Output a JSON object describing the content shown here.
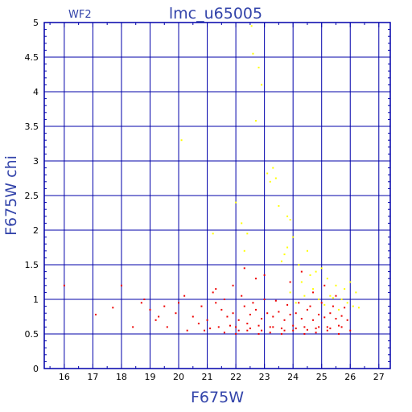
{
  "chart_data": {
    "type": "scatter",
    "title": "lmc_u65005",
    "subtitle": "WF2",
    "xlabel": "F675W",
    "ylabel": "F675W chi",
    "xlim": [
      15.3,
      27.4
    ],
    "ylim": [
      0,
      5
    ],
    "x_ticks": [
      16,
      17,
      18,
      19,
      20,
      21,
      22,
      23,
      24,
      25,
      26,
      27
    ],
    "y_ticks": [
      0,
      0.5,
      1,
      1.5,
      2,
      2.5,
      3,
      3.5,
      4,
      4.5,
      5
    ],
    "y_tick_labels": [
      "0",
      "0.5",
      "1",
      "1.5",
      "2",
      "2.5",
      "3",
      "3.5",
      "4",
      "4.5",
      "5"
    ],
    "grid": true,
    "colors": {
      "frame": "#0000aa",
      "text": "#3344aa",
      "series_red": "#ee0000",
      "series_yellow": "#ffff00"
    },
    "series": [
      {
        "color": "#ffff00",
        "x": [
          22.6,
          22.8,
          22.9,
          22.7,
          22.55,
          23.3,
          23.1,
          23.2,
          23.4,
          23.5,
          22.0,
          22.2,
          22.4,
          23.8,
          23.9,
          24.0,
          21.2,
          20.1,
          22.3,
          23.6,
          23.7,
          24.2,
          24.5,
          24.8,
          25.0,
          25.2,
          24.3,
          24.6,
          25.5,
          25.8,
          26.0,
          26.2,
          25.3,
          24.9,
          23.9,
          24.1,
          25.9,
          26.1,
          25.6,
          25.7,
          24.7,
          24.4,
          23.8,
          25.1,
          25.4,
          26.3
        ],
        "y": [
          4.55,
          4.35,
          4.1,
          3.58,
          4.95,
          2.9,
          2.82,
          2.7,
          2.75,
          2.35,
          2.4,
          2.1,
          1.95,
          2.2,
          2.15,
          1.9,
          1.95,
          3.3,
          1.7,
          1.55,
          1.65,
          1.5,
          1.7,
          1.4,
          1.45,
          1.3,
          1.25,
          1.35,
          1.2,
          1.15,
          1.25,
          1.1,
          1.05,
          1.0,
          1.1,
          0.95,
          0.95,
          0.9,
          0.85,
          1.0,
          1.15,
          1.05,
          1.75,
          0.92,
          1.02,
          0.88
        ]
      },
      {
        "color": "#ee0000",
        "x": [
          16.0,
          17.1,
          17.7,
          18.0,
          18.4,
          18.7,
          19.0,
          19.2,
          19.5,
          19.9,
          20.2,
          20.5,
          20.8,
          21.0,
          21.3,
          21.5,
          21.7,
          21.9,
          22.1,
          22.3,
          22.5,
          22.7,
          22.9,
          23.1,
          23.3,
          23.5,
          23.7,
          23.9,
          24.1,
          24.3,
          24.5,
          24.7,
          24.9,
          25.1,
          25.3,
          25.5,
          25.7,
          25.9,
          22.0,
          22.4,
          22.8,
          23.2,
          23.6,
          24.0,
          24.4,
          24.8,
          25.2,
          25.6,
          21.2,
          21.6,
          22.2,
          22.6,
          23.0,
          23.4,
          23.8,
          24.2,
          24.6,
          25.0,
          25.4,
          25.8,
          20.9,
          21.4,
          21.8,
          22.1,
          22.5,
          22.9,
          23.3,
          23.7,
          24.1,
          24.5,
          24.9,
          25.3,
          25.7,
          19.6,
          20.3,
          20.7,
          21.1,
          21.6,
          22.0,
          22.4,
          22.8,
          23.2,
          23.6,
          24.0,
          24.4,
          24.8,
          25.2,
          25.6,
          26.0,
          18.8,
          19.3,
          20.0,
          21.9,
          22.7,
          23.9,
          24.7,
          25.5,
          23.0,
          22.3,
          21.3,
          24.3,
          25.1
        ],
        "y": [
          1.2,
          0.78,
          0.88,
          1.2,
          0.6,
          0.95,
          0.85,
          0.7,
          0.9,
          0.8,
          1.05,
          0.75,
          0.9,
          0.7,
          0.95,
          0.85,
          0.75,
          0.8,
          0.7,
          0.9,
          0.78,
          0.85,
          0.72,
          0.8,
          0.75,
          0.82,
          0.7,
          0.78,
          0.8,
          0.72,
          0.85,
          0.7,
          0.78,
          0.74,
          0.8,
          0.72,
          0.76,
          0.7,
          0.6,
          0.65,
          0.62,
          0.6,
          0.58,
          0.62,
          0.6,
          0.58,
          0.6,
          0.62,
          1.1,
          1.0,
          1.05,
          0.95,
          1.0,
          0.98,
          0.92,
          0.95,
          0.9,
          0.95,
          0.9,
          0.88,
          0.55,
          0.6,
          0.62,
          0.55,
          0.58,
          0.55,
          0.6,
          0.55,
          0.58,
          0.56,
          0.6,
          0.58,
          0.6,
          0.6,
          0.55,
          0.65,
          0.58,
          0.52,
          0.5,
          0.55,
          0.5,
          0.52,
          0.5,
          0.55,
          0.5,
          0.52,
          0.55,
          0.5,
          0.55,
          1.0,
          0.75,
          0.95,
          1.2,
          1.3,
          1.25,
          1.1,
          1.05,
          1.35,
          1.45,
          1.15,
          1.4,
          1.2
        ]
      }
    ]
  }
}
